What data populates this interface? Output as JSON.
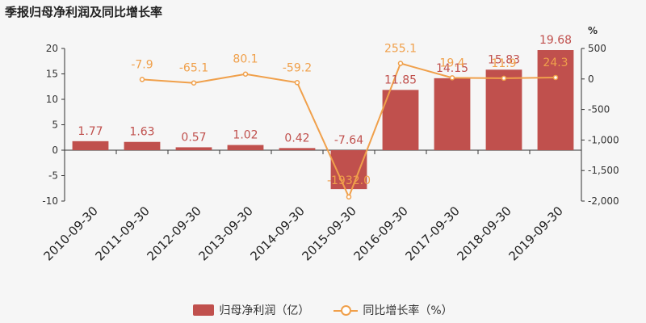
{
  "header": {
    "title": "季报归母净利润及同比增长率"
  },
  "legend": {
    "bar_label": "归母净利润（亿）",
    "line_label": "同比增长率（%）"
  },
  "colors": {
    "bar": "#c0504d",
    "line": "#f0a04b"
  },
  "chart_data": {
    "type": "bar",
    "categories": [
      "2010-09-30",
      "2011-09-30",
      "2012-09-30",
      "2013-09-30",
      "2014-09-30",
      "2015-09-30",
      "2016-09-30",
      "2017-09-30",
      "2018-09-30",
      "2019-09-30"
    ],
    "series": [
      {
        "name": "归母净利润（亿）",
        "type": "bar",
        "axis": "left",
        "values": [
          1.77,
          1.63,
          0.57,
          1.02,
          0.42,
          -7.64,
          11.85,
          14.15,
          15.83,
          19.68
        ],
        "labels": [
          "1.77",
          "1.63",
          "0.57",
          "1.02",
          "0.42",
          "-7.64",
          "11.85",
          "14.15",
          "15.83",
          "19.68"
        ]
      },
      {
        "name": "同比增长率（%）",
        "type": "line",
        "axis": "right",
        "values": [
          null,
          -7.9,
          -65.1,
          80.1,
          -59.2,
          -1932.0,
          255.1,
          19.4,
          11.9,
          24.3
        ],
        "labels": [
          "",
          "-7.9",
          "-65.1",
          "80.1",
          "-59.2",
          "-1932.0",
          "255.1",
          "19.4",
          "11.9",
          "24.3"
        ]
      }
    ],
    "left_axis": {
      "ylim": [
        -10,
        20
      ],
      "ticks": [
        "-10",
        "-5",
        "0",
        "5",
        "10",
        "15",
        "20"
      ]
    },
    "right_axis": {
      "unit": "%",
      "ylim": [
        -2000,
        500
      ],
      "ticks": [
        "-2,000",
        "-1,500",
        "-1,000",
        "-500",
        "0",
        "500"
      ]
    }
  }
}
